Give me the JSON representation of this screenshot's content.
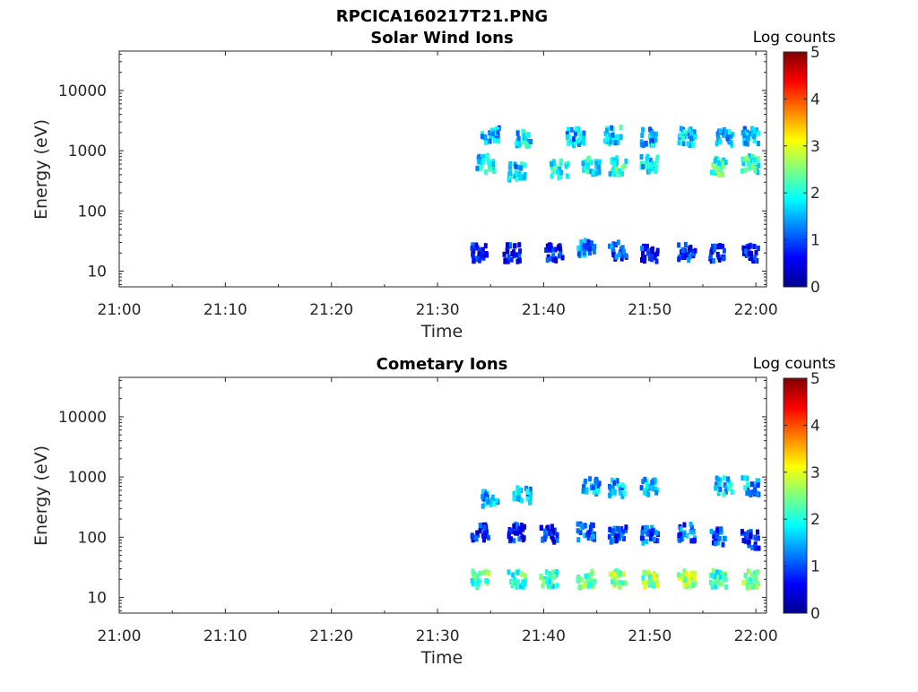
{
  "figure_title": "RPCICA160217T21.PNG",
  "chart_data": [
    {
      "type": "heatmap",
      "title": "Solar Wind Ions",
      "xlabel": "Time",
      "ylabel": "Energy (eV)",
      "yscale": "log",
      "xticks": [
        "21:00",
        "21:10",
        "21:20",
        "21:30",
        "21:40",
        "21:50",
        "22:00"
      ],
      "yticks": [
        "10",
        "100",
        "1000",
        "10000"
      ],
      "xlim": [
        "21:00",
        "22:01"
      ],
      "ylim": [
        5.5,
        45000
      ],
      "colorbar": {
        "label": "Log counts",
        "ticks": [
          "0",
          "1",
          "2",
          "3",
          "4",
          "5"
        ],
        "range": [
          0,
          5
        ],
        "colormap": "jet"
      },
      "clusters": [
        {
          "time": "21:34",
          "energy": 20,
          "log_counts": 0.6
        },
        {
          "time": "21:34.5",
          "energy": 600,
          "log_counts": 1.8
        },
        {
          "time": "21:35",
          "energy": 1800,
          "log_counts": 1.5
        },
        {
          "time": "21:37",
          "energy": 20,
          "log_counts": 0.6
        },
        {
          "time": "21:37.5",
          "energy": 450,
          "log_counts": 1.6
        },
        {
          "time": "21:38",
          "energy": 1600,
          "log_counts": 1.7
        },
        {
          "time": "21:41",
          "energy": 20,
          "log_counts": 0.6
        },
        {
          "time": "21:41.5",
          "energy": 500,
          "log_counts": 1.9
        },
        {
          "time": "21:43",
          "energy": 1700,
          "log_counts": 1.5
        },
        {
          "time": "21:44",
          "energy": 25,
          "log_counts": 1.2
        },
        {
          "time": "21:44.5",
          "energy": 550,
          "log_counts": 1.8
        },
        {
          "time": "21:46.5",
          "energy": 1800,
          "log_counts": 1.7
        },
        {
          "time": "21:47",
          "energy": 22,
          "log_counts": 0.9
        },
        {
          "time": "21:47",
          "energy": 550,
          "log_counts": 2.0
        },
        {
          "time": "21:50",
          "energy": 20,
          "log_counts": 0.7
        },
        {
          "time": "21:50",
          "energy": 600,
          "log_counts": 1.8
        },
        {
          "time": "21:50",
          "energy": 1700,
          "log_counts": 1.5
        },
        {
          "time": "21:53.5",
          "energy": 20,
          "log_counts": 0.8
        },
        {
          "time": "21:53.5",
          "energy": 1700,
          "log_counts": 1.6
        },
        {
          "time": "21:56.5",
          "energy": 20,
          "log_counts": 0.7
        },
        {
          "time": "21:56.5",
          "energy": 550,
          "log_counts": 2.2
        },
        {
          "time": "21:57",
          "energy": 1700,
          "log_counts": 1.6
        },
        {
          "time": "21:59.5",
          "energy": 20,
          "log_counts": 0.7
        },
        {
          "time": "21:59.5",
          "energy": 600,
          "log_counts": 2.1
        },
        {
          "time": "21:59.5",
          "energy": 1700,
          "log_counts": 1.5
        }
      ]
    },
    {
      "type": "heatmap",
      "title": "Cometary Ions",
      "xlabel": "Time",
      "ylabel": "Energy (eV)",
      "yscale": "log",
      "xticks": [
        "21:00",
        "21:10",
        "21:20",
        "21:30",
        "21:40",
        "21:50",
        "22:00"
      ],
      "yticks": [
        "10",
        "100",
        "1000",
        "10000"
      ],
      "xlim": [
        "21:00",
        "22:01"
      ],
      "ylim": [
        5.5,
        45000
      ],
      "colorbar": {
        "label": "Log counts",
        "ticks": [
          "0",
          "1",
          "2",
          "3",
          "4",
          "5"
        ],
        "range": [
          0,
          5
        ],
        "colormap": "jet"
      },
      "clusters": [
        {
          "time": "21:34",
          "energy": 20,
          "log_counts": 2.3
        },
        {
          "time": "21:34",
          "energy": 120,
          "log_counts": 0.7
        },
        {
          "time": "21:35",
          "energy": 450,
          "log_counts": 1.5
        },
        {
          "time": "21:37.5",
          "energy": 20,
          "log_counts": 2.2
        },
        {
          "time": "21:37.5",
          "energy": 120,
          "log_counts": 0.7
        },
        {
          "time": "21:38",
          "energy": 500,
          "log_counts": 1.6
        },
        {
          "time": "21:40.5",
          "energy": 20,
          "log_counts": 2.1
        },
        {
          "time": "21:40.5",
          "energy": 110,
          "log_counts": 0.7
        },
        {
          "time": "21:44",
          "energy": 20,
          "log_counts": 2.4
        },
        {
          "time": "21:44",
          "energy": 120,
          "log_counts": 1.2
        },
        {
          "time": "21:44.5",
          "energy": 700,
          "log_counts": 1.5
        },
        {
          "time": "21:47",
          "energy": 20,
          "log_counts": 2.6
        },
        {
          "time": "21:47",
          "energy": 110,
          "log_counts": 1.0
        },
        {
          "time": "21:47",
          "energy": 650,
          "log_counts": 1.5
        },
        {
          "time": "21:50",
          "energy": 20,
          "log_counts": 2.6
        },
        {
          "time": "21:50",
          "energy": 110,
          "log_counts": 1.0
        },
        {
          "time": "21:50",
          "energy": 700,
          "log_counts": 1.6
        },
        {
          "time": "21:53.5",
          "energy": 20,
          "log_counts": 2.7
        },
        {
          "time": "21:53.5",
          "energy": 120,
          "log_counts": 1.1
        },
        {
          "time": "21:56.5",
          "energy": 20,
          "log_counts": 2.2
        },
        {
          "time": "21:56.5",
          "energy": 100,
          "log_counts": 1.0
        },
        {
          "time": "21:57",
          "energy": 700,
          "log_counts": 1.6
        },
        {
          "time": "21:59.5",
          "energy": 20,
          "log_counts": 2.4
        },
        {
          "time": "21:59.5",
          "energy": 90,
          "log_counts": 0.8
        },
        {
          "time": "21:59.5",
          "energy": 700,
          "log_counts": 1.4
        }
      ]
    }
  ]
}
